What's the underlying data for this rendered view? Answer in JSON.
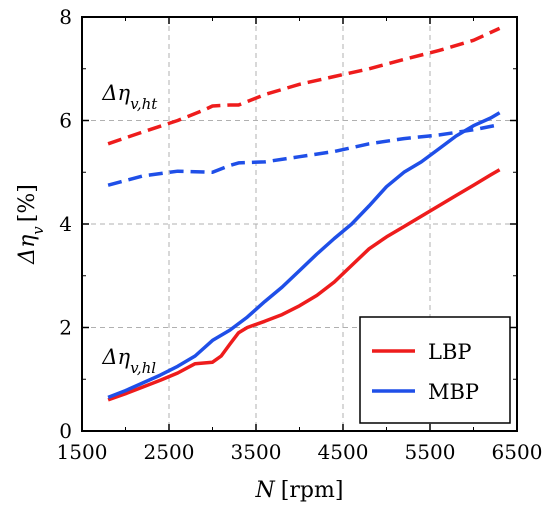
{
  "chart_data": {
    "type": "line",
    "xlabel": "N [rpm]",
    "ylabel": "Δη_v [%]",
    "xlim": [
      1500,
      6500
    ],
    "ylim": [
      0,
      8
    ],
    "xticks": [
      "1500",
      "2500",
      "3500",
      "4500",
      "5500",
      "6500"
    ],
    "yticks": [
      "0",
      "2",
      "4",
      "6",
      "8"
    ],
    "grid": true,
    "legend_position": "bottom-right",
    "annotations": [
      {
        "text": "Δη_v,ht",
        "x": 1700,
        "y": 6.55
      },
      {
        "text": "Δη_v,hl",
        "x": 1700,
        "y": 1.45
      }
    ],
    "legend": [
      {
        "label": "LBP",
        "color": "#ee1c1c"
      },
      {
        "label": "MBP",
        "color": "#1f4fe8"
      }
    ],
    "series": [
      {
        "name": "LBP",
        "metric": "hl",
        "style": "solid",
        "color": "#ee1c1c",
        "x": [
          1800,
          2000,
          2200,
          2400,
          2600,
          2800,
          3000,
          3100,
          3200,
          3300,
          3400,
          3600,
          3800,
          4000,
          4200,
          4400,
          4600,
          4800,
          5000,
          5200,
          5400,
          5600,
          5800,
          6000,
          6200,
          6300
        ],
        "y": [
          0.6,
          0.72,
          0.85,
          0.98,
          1.12,
          1.3,
          1.33,
          1.45,
          1.68,
          1.9,
          2.0,
          2.12,
          2.25,
          2.42,
          2.62,
          2.88,
          3.2,
          3.52,
          3.75,
          3.95,
          4.15,
          4.35,
          4.55,
          4.75,
          4.95,
          5.05
        ]
      },
      {
        "name": "MBP",
        "metric": "hl",
        "style": "solid",
        "color": "#1f4fe8",
        "x": [
          1800,
          2000,
          2200,
          2400,
          2600,
          2800,
          3000,
          3200,
          3400,
          3600,
          3800,
          4000,
          4200,
          4400,
          4600,
          4800,
          5000,
          5200,
          5400,
          5600,
          5800,
          6000,
          6200,
          6300
        ],
        "y": [
          0.65,
          0.78,
          0.93,
          1.08,
          1.25,
          1.45,
          1.75,
          1.95,
          2.2,
          2.5,
          2.78,
          3.1,
          3.42,
          3.72,
          4.0,
          4.35,
          4.72,
          5.0,
          5.2,
          5.45,
          5.7,
          5.9,
          6.05,
          6.15
        ]
      },
      {
        "name": "LBP",
        "metric": "ht",
        "style": "dashed",
        "color": "#ee1c1c",
        "x": [
          1800,
          2200,
          2600,
          2900,
          3000,
          3200,
          3300,
          3600,
          4000,
          4400,
          4800,
          5200,
          5600,
          6000,
          6300
        ],
        "y": [
          5.55,
          5.78,
          6.0,
          6.2,
          6.28,
          6.3,
          6.3,
          6.5,
          6.7,
          6.85,
          7.0,
          7.18,
          7.35,
          7.55,
          7.78
        ]
      },
      {
        "name": "MBP",
        "metric": "ht",
        "style": "dashed",
        "color": "#1f4fe8",
        "x": [
          1800,
          2200,
          2600,
          3000,
          3200,
          3300,
          3600,
          4000,
          4400,
          4800,
          5200,
          5600,
          6000,
          6300
        ],
        "y": [
          4.75,
          4.93,
          5.02,
          5.0,
          5.13,
          5.18,
          5.2,
          5.3,
          5.4,
          5.55,
          5.65,
          5.72,
          5.82,
          5.92
        ]
      }
    ]
  }
}
